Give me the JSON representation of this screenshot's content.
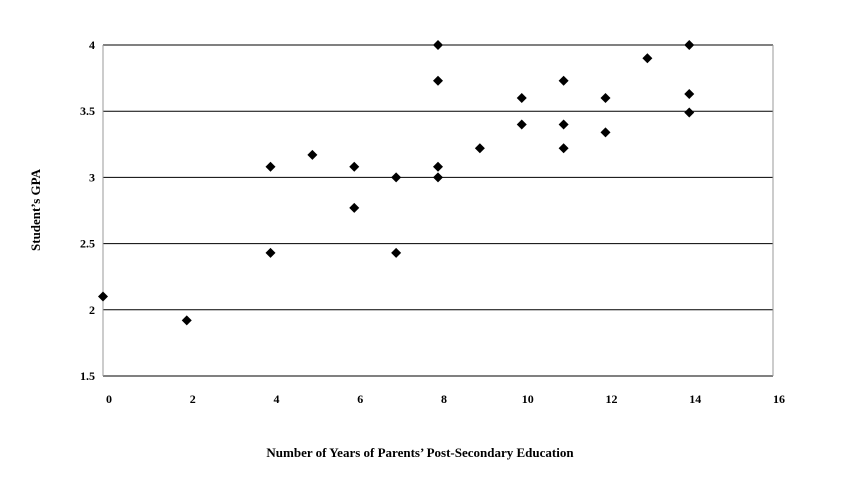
{
  "chart_data": {
    "type": "scatter",
    "title": "",
    "xlabel": "Number of Years of Parents’ Post-Secondary Education",
    "ylabel": "Student’s GPA",
    "xlim": [
      0,
      16
    ],
    "ylim": [
      1.5,
      4
    ],
    "x_ticks": [
      "0",
      "2",
      "4",
      "6",
      "8",
      "10",
      "12",
      "14",
      "16"
    ],
    "y_ticks": [
      "1.5",
      "2",
      "2.5",
      "3",
      "3.5",
      "4"
    ],
    "grid": "horizontal",
    "marker": "diamond",
    "series": [
      {
        "points": [
          {
            "x": 0,
            "y": 2.1
          },
          {
            "x": 2,
            "y": 1.92
          },
          {
            "x": 4,
            "y": 3.08
          },
          {
            "x": 4,
            "y": 2.43
          },
          {
            "x": 5,
            "y": 3.17
          },
          {
            "x": 6,
            "y": 3.08
          },
          {
            "x": 6,
            "y": 2.77
          },
          {
            "x": 7,
            "y": 3.0
          },
          {
            "x": 7,
            "y": 2.43
          },
          {
            "x": 8,
            "y": 4.0
          },
          {
            "x": 8,
            "y": 3.73
          },
          {
            "x": 8,
            "y": 3.08
          },
          {
            "x": 8,
            "y": 3.0
          },
          {
            "x": 9,
            "y": 3.22
          },
          {
            "x": 10,
            "y": 3.6
          },
          {
            "x": 10,
            "y": 3.4
          },
          {
            "x": 11,
            "y": 3.73
          },
          {
            "x": 11,
            "y": 3.4
          },
          {
            "x": 11,
            "y": 3.22
          },
          {
            "x": 12,
            "y": 3.6
          },
          {
            "x": 12,
            "y": 3.34
          },
          {
            "x": 13,
            "y": 3.9
          },
          {
            "x": 14,
            "y": 4.0
          },
          {
            "x": 14,
            "y": 3.63
          },
          {
            "x": 14,
            "y": 3.49
          }
        ]
      }
    ]
  }
}
